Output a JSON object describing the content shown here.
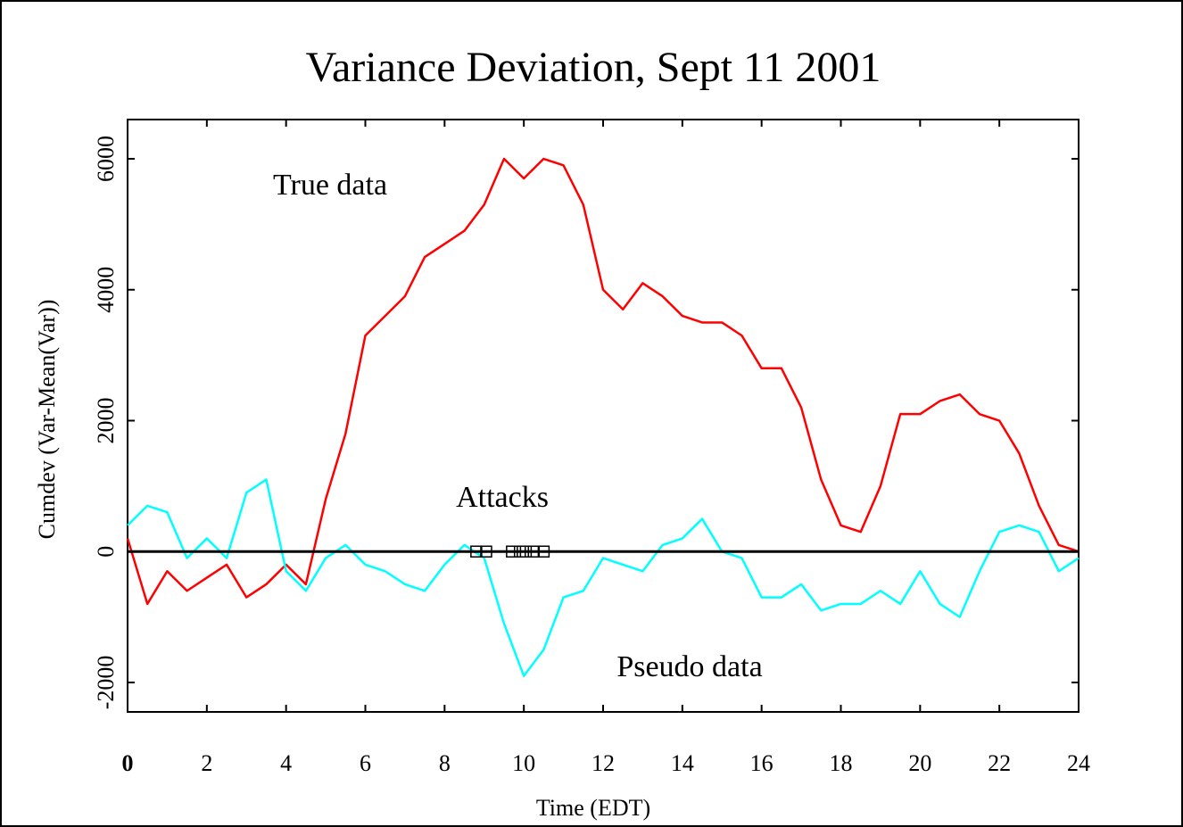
{
  "chart_data": {
    "type": "line",
    "title": "Variance Deviation, Sept 11 2001",
    "xlabel": "Time (EDT)",
    "ylabel": "Cumdev (Var-Mean(Var))",
    "x": [
      0,
      0.5,
      1,
      1.5,
      2,
      2.5,
      3,
      3.5,
      4,
      4.5,
      5,
      5.5,
      6,
      6.5,
      7,
      7.5,
      8,
      8.5,
      9,
      9.5,
      10,
      10.5,
      11,
      11.5,
      12,
      12.5,
      13,
      13.5,
      14,
      14.5,
      15,
      15.5,
      16,
      16.5,
      17,
      17.5,
      18,
      18.5,
      19,
      19.5,
      20,
      20.5,
      21,
      21.5,
      22,
      22.5,
      23,
      23.5,
      24
    ],
    "series": [
      {
        "name": "True data",
        "color": "#ff0000",
        "values": [
          200,
          -800,
          -300,
          -600,
          -400,
          -200,
          -700,
          -500,
          -200,
          -500,
          800,
          1800,
          3300,
          3600,
          3900,
          4500,
          4700,
          4900,
          5300,
          6000,
          5700,
          6000,
          5900,
          5300,
          4000,
          3700,
          4100,
          3900,
          3600,
          3500,
          3500,
          3300,
          2800,
          2800,
          2200,
          1100,
          400,
          300,
          1000,
          2100,
          2100,
          2300,
          2400,
          2100,
          2000,
          1500,
          700,
          100,
          0
        ]
      },
      {
        "name": "Pseudo data",
        "color": "#00ffff",
        "values": [
          400,
          700,
          600,
          -100,
          200,
          -100,
          900,
          1100,
          -300,
          -600,
          -100,
          100,
          -200,
          -300,
          -500,
          -600,
          -200,
          100,
          -100,
          -1100,
          -1900,
          -1500,
          -700,
          -600,
          -100,
          -200,
          -300,
          100,
          200,
          500,
          0,
          -100,
          -700,
          -700,
          -500,
          -900,
          -800,
          -800,
          -600,
          -800,
          -300,
          -800,
          -1000,
          -300,
          300,
          400,
          300,
          -300,
          -100
        ]
      }
    ],
    "attacks": {
      "label": "Attacks",
      "x": [
        8.8,
        9.05,
        9.7,
        9.9,
        10.05,
        10.25,
        10.5
      ],
      "values": [
        0,
        0,
        0,
        0,
        0,
        0,
        0
      ]
    },
    "hline": 0,
    "xlim": [
      0,
      24
    ],
    "ylim": [
      -2450,
      6600
    ],
    "xticks": [
      0,
      2,
      4,
      6,
      8,
      10,
      12,
      14,
      16,
      18,
      20,
      22,
      24
    ],
    "yticks": [
      -2000,
      0,
      2000,
      4000,
      6000
    ]
  }
}
